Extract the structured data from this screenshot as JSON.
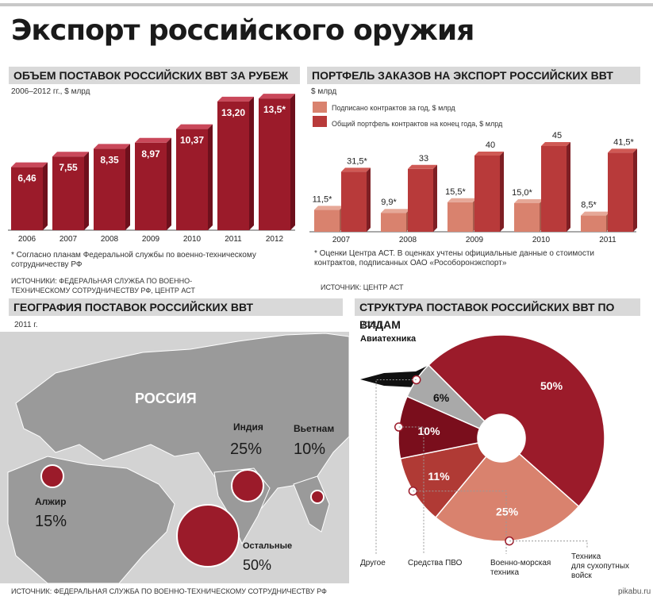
{
  "main_title": "Экспорт российского оружия",
  "section1": {
    "header": "ОБЪЕМ ПОСТАВОК РОССИЙСКИХ ВВТ ЗА РУБЕЖ",
    "subtitle": "2006–2012 гг., $ млрд",
    "note": "* Согласно планам Федеральной службы по военно-техническому сотрудничеству РФ",
    "source": "ИСТОЧНИКИ: ФЕДЕРАЛЬНАЯ СЛУЖБА ПО ВОЕННО-ТЕХНИЧЕСКОМУ СОТРУДНИЧЕСТВУ РФ, ЦЕНТР АСТ"
  },
  "section2": {
    "header": "ПОРТФЕЛЬ ЗАКАЗОВ НА ЭКСПОРТ РОССИЙСКИХ ВВТ",
    "subtitle": "$ млрд",
    "legend_signed": "Подписано контрактов за год, $ млрд",
    "legend_total": "Общий портфель контрактов на конец года, $ млрд",
    "note": "* Оценки Центра АСТ. В оценках учтены официальные данные о стоимости контрактов, подписанных ОАО «Рособоронэкспорт»",
    "source": "ИСТОЧНИК: ЦЕНТР АСТ"
  },
  "section3": {
    "header": "ГЕОГРАФИЯ ПОСТАВОК РОССИЙСКИХ ВВТ",
    "subtitle": "2011 г.",
    "russia_label": "РОССИЯ",
    "source": "ИСТОЧНИК: ФЕДЕРАЛЬНАЯ СЛУЖБА ПО ВОЕННО-ТЕХНИЧЕСКОМУ СОТРУДНИЧЕСТВУ РФ",
    "destinations": [
      {
        "name": "Индия",
        "share": "25%",
        "value": 25
      },
      {
        "name": "Вьетнам",
        "share": "10%",
        "value": 10
      },
      {
        "name": "Алжир",
        "share": "15%",
        "value": 15
      },
      {
        "name": "Остальные",
        "share": "50%",
        "value": 50
      }
    ]
  },
  "section4": {
    "header": "СТРУКТУРА ПОСТАВОК РОССИЙСКИХ ВВТ ПО ВИДАМ",
    "subtitle": "2011 г.",
    "aviation_label": "Авиатехника"
  },
  "watermark": "pikabu.ru",
  "colors": {
    "bar_dark": "#9b1b2a",
    "bar_light": "#d9826e",
    "bar_red": "#b83a3a",
    "pie_aviation": "#9b1b2a",
    "pie_ground": "#d9826e",
    "pie_navy": "#b03a35",
    "pie_pvo": "#7a0e1c",
    "pie_other": "#a9a9a9",
    "map_land": "#9a9a9a",
    "map_sea": "#d3d3d3",
    "bubble": "#9b1b2a"
  },
  "chart_data": [
    {
      "type": "bar",
      "title": "ОБЪЕМ ПОСТАВОК РОССИЙСКИХ ВВТ ЗА РУБЕЖ",
      "categories": [
        "2006",
        "2007",
        "2008",
        "2009",
        "2010",
        "2011",
        "2012"
      ],
      "values": [
        6.46,
        7.55,
        8.35,
        8.97,
        10.37,
        13.2,
        13.5
      ],
      "labels": [
        "6,46",
        "7,55",
        "8,35",
        "8,97",
        "10,37",
        "13,20",
        "13,5*"
      ],
      "ylim": [
        0,
        14
      ]
    },
    {
      "type": "bar",
      "title": "ПОРТФЕЛЬ ЗАКАЗОВ НА ЭКСПОРТ РОССИЙСКИХ ВВТ",
      "categories": [
        "2007",
        "2008",
        "2009",
        "2010",
        "2011"
      ],
      "series": [
        {
          "name": "Подписано контрактов за год, $ млрд",
          "values": [
            11.5,
            9.9,
            15.5,
            15.0,
            8.5
          ],
          "labels": [
            "11,5*",
            "9,9*",
            "15,5*",
            "15,0*",
            "8,5*"
          ]
        },
        {
          "name": "Общий портфель контрактов на конец года, $ млрд",
          "values": [
            31.5,
            33,
            40,
            45,
            41.5
          ],
          "labels": [
            "31,5*",
            "33",
            "40",
            "45",
            "41,5*"
          ]
        }
      ],
      "ylim": [
        0,
        50
      ]
    },
    {
      "type": "pie",
      "title": "СТРУКТУРА ПОСТАВОК РОССИЙСКИХ ВВТ ПО ВИДАМ",
      "slices": [
        {
          "name": "Авиатехника",
          "value": 50,
          "label": "50%"
        },
        {
          "name": "Техника для сухопутных войск",
          "value": 25,
          "label": "25%"
        },
        {
          "name": "Военно-морская техника",
          "value": 11,
          "label": "11%"
        },
        {
          "name": "Средства ПВО",
          "value": 10,
          "label": "10%"
        },
        {
          "name": "Другое",
          "value": 6,
          "label": "6%"
        }
      ]
    }
  ]
}
